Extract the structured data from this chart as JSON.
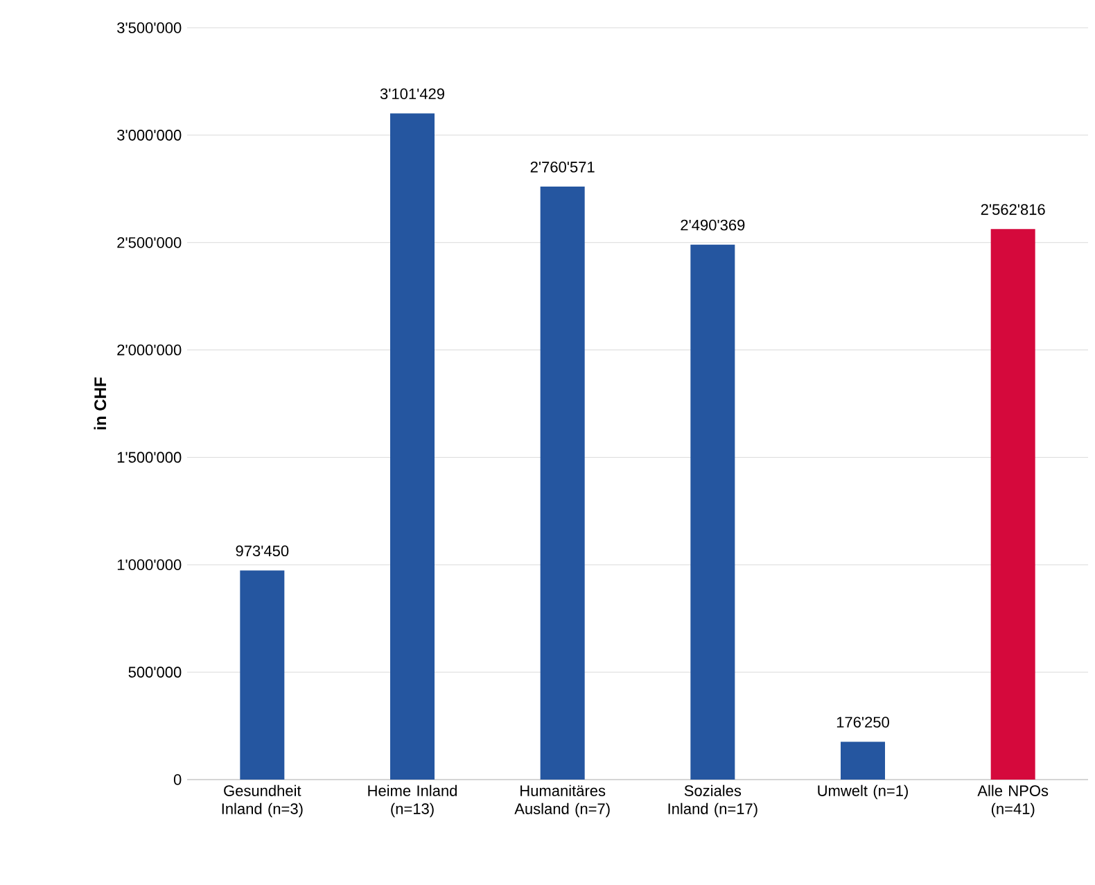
{
  "chart_data": {
    "type": "bar",
    "ylabel": "in CHF",
    "categories": [
      "Gesundheit Inland (n=3)",
      "Heime Inland (n=13)",
      "Humanitäres Ausland (n=7)",
      "Soziales Inland (n=17)",
      "Umwelt (n=1)",
      "Alle NPOs (n=41)"
    ],
    "values": [
      973450,
      3101429,
      2760571,
      2490369,
      176250,
      2562816
    ],
    "value_labels": [
      "973'450",
      "3'101'429",
      "2'760'571",
      "2'490'369",
      "176'250",
      "2'562'816"
    ],
    "colors": [
      "#2556a0",
      "#2556a0",
      "#2556a0",
      "#2556a0",
      "#2556a0",
      "#d5093c"
    ],
    "ylim": [
      0,
      3500000
    ],
    "yticks": [
      {
        "value": 0,
        "label": "0"
      },
      {
        "value": 500000,
        "label": "500'000"
      },
      {
        "value": 1000000,
        "label": "1'000'000"
      },
      {
        "value": 1500000,
        "label": "1'500'000"
      },
      {
        "value": 2000000,
        "label": "2'000'000"
      },
      {
        "value": 2500000,
        "label": "2'500'000"
      },
      {
        "value": 3000000,
        "label": "3'000'000"
      },
      {
        "value": 3500000,
        "label": "3'500'000"
      }
    ],
    "grid": "y"
  }
}
